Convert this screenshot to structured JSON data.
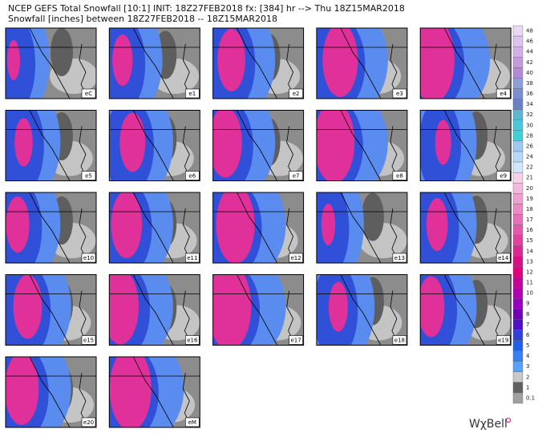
{
  "header": {
    "title": "NCEP GEFS Total Snowfall [10:1] INIT: 18Z27FEB2018  fx: [384] hr --> Thu 18Z15MAR2018",
    "subtitle": "Snowfall [inches] between 18Z27FEB2018 -- 18Z15MAR2018"
  },
  "panels": [
    "eC",
    "e1",
    "e2",
    "e3",
    "e4",
    "e5",
    "e6",
    "e7",
    "e8",
    "e9",
    "e10",
    "e11",
    "e12",
    "e13",
    "e14",
    "e15",
    "e16",
    "e17",
    "e18",
    "e19",
    "e20",
    "eM"
  ],
  "colorbar": {
    "labels": [
      48,
      46,
      44,
      42,
      40,
      38,
      36,
      34,
      32,
      30,
      28,
      26,
      24,
      22,
      21,
      20,
      19,
      18,
      17,
      16,
      15,
      14,
      13,
      12,
      11,
      10,
      9,
      8,
      7,
      6,
      5,
      4,
      3,
      2,
      1,
      0.1
    ],
    "colors": [
      "#e8d8f4",
      "#dcc4ee",
      "#d0b0e6",
      "#c49cde",
      "#b48ad4",
      "#8e9ed8",
      "#7a8ed0",
      "#6a80c8",
      "#5cb8d0",
      "#4cc8d8",
      "#40d0d8",
      "#a0c8f0",
      "#b8d8f8",
      "#d0e8ff",
      "#f8d0e8",
      "#f4b8dc",
      "#f0a0d0",
      "#ec88c4",
      "#e870b8",
      "#e458ac",
      "#e040a0",
      "#dc2894",
      "#d81088",
      "#e0007c",
      "#c8009a",
      "#b000b0",
      "#9800c0",
      "#7000b8",
      "#5010c8",
      "#3040d8",
      "#2060e8",
      "#3880f0",
      "#5aa0f8",
      "#c8c8c8",
      "#606060",
      "#a0a0a0"
    ]
  },
  "logo": "WχBell"
}
